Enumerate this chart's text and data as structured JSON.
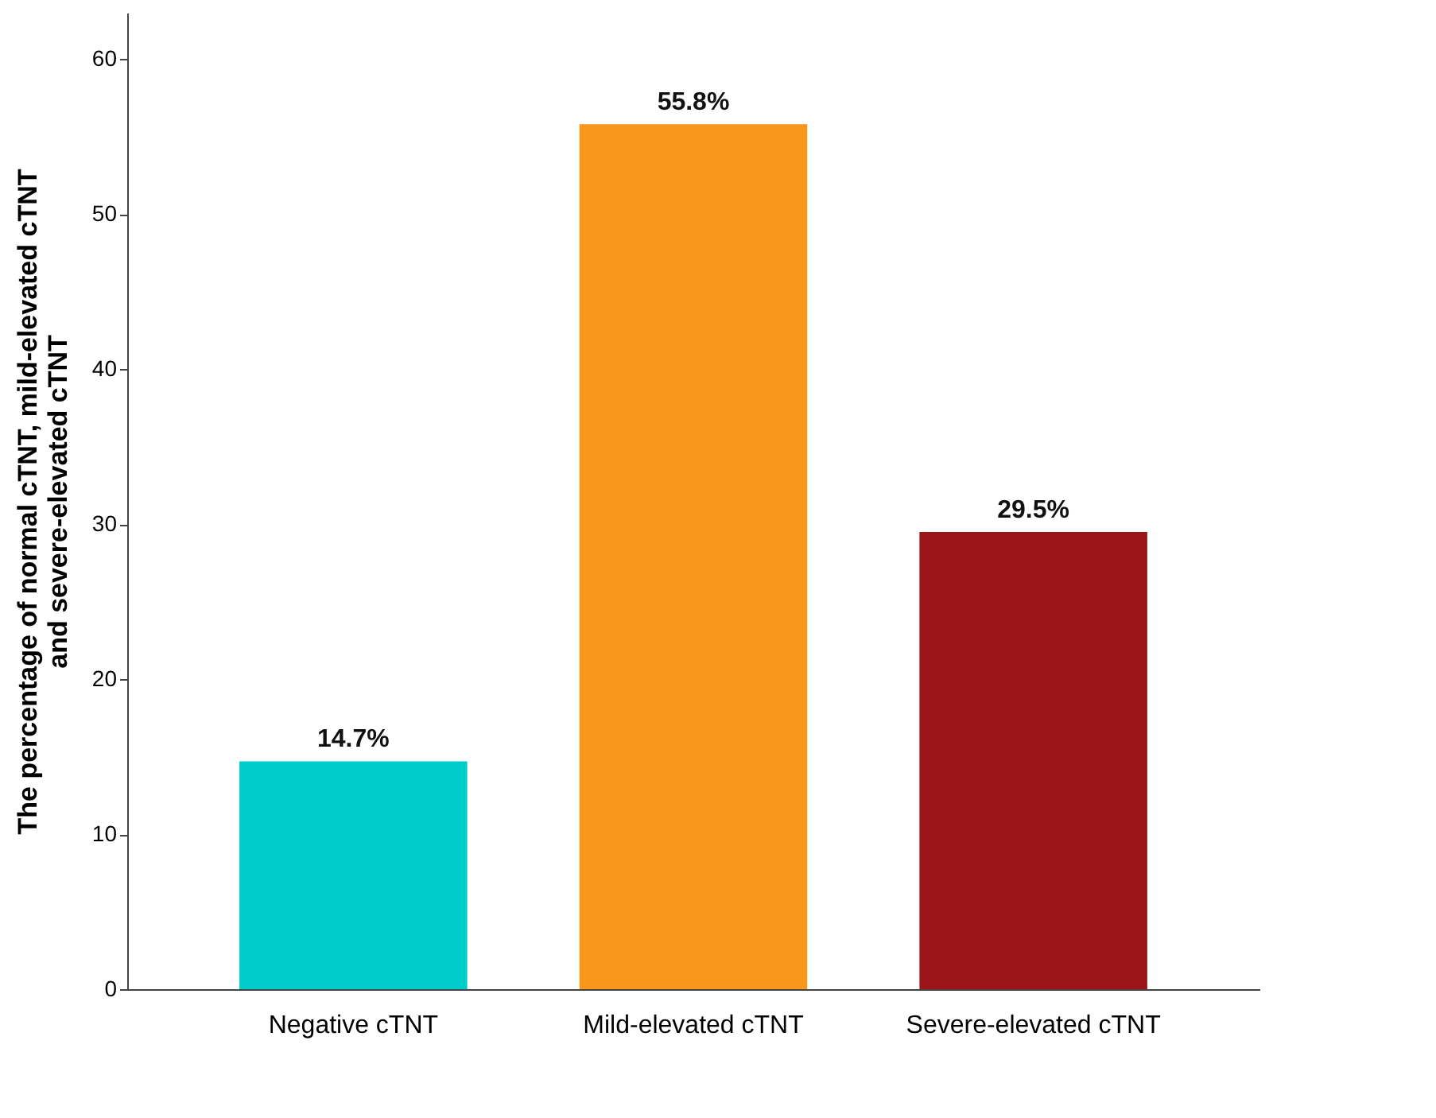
{
  "chart_data": {
    "type": "bar",
    "ylabel": "The percentage of normal cTNT, mild-elevated cTNT and severe-elevated cTNT",
    "categories": [
      "Negative cTNT",
      "Mild-elevated cTNT",
      "Severe-elevated cTNT"
    ],
    "values": [
      14.7,
      55.8,
      29.5
    ],
    "colors": [
      "#00cccc",
      "#f7981d",
      "#9c1519"
    ],
    "value_labels": [
      "14.7%",
      "55.8%",
      "29.5%"
    ],
    "ylim": [
      0,
      63
    ],
    "yticks": [
      0,
      10,
      20,
      30,
      40,
      50,
      60
    ],
    "grid": false
  }
}
